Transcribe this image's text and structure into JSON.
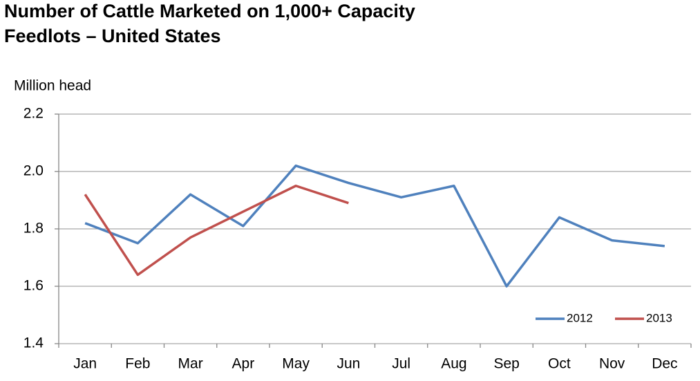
{
  "chart_data": {
    "type": "line",
    "title": [
      "Number of Cattle Marketed on 1,000+ Capacity",
      "Feedlots – United States"
    ],
    "y_label": "Million head",
    "categories": [
      "Jan",
      "Feb",
      "Mar",
      "Apr",
      "May",
      "Jun",
      "Jul",
      "Aug",
      "Sep",
      "Oct",
      "Nov",
      "Dec"
    ],
    "series": [
      {
        "name": "2012",
        "color": "#4f81bd",
        "values": [
          1.82,
          1.75,
          1.92,
          1.81,
          2.02,
          1.96,
          1.91,
          1.95,
          1.6,
          1.84,
          1.76,
          1.74
        ]
      },
      {
        "name": "2013",
        "color": "#c0504d",
        "values": [
          1.92,
          1.64,
          1.77,
          1.86,
          1.95,
          1.89,
          null,
          null,
          null,
          null,
          null,
          null
        ]
      }
    ],
    "ylim": [
      1.4,
      2.2
    ],
    "yticks": [
      1.4,
      1.6,
      1.8,
      {
        "value": 2,
        "label": "2.0"
      },
      2.2
    ],
    "grid": true,
    "legend": "lower right"
  }
}
